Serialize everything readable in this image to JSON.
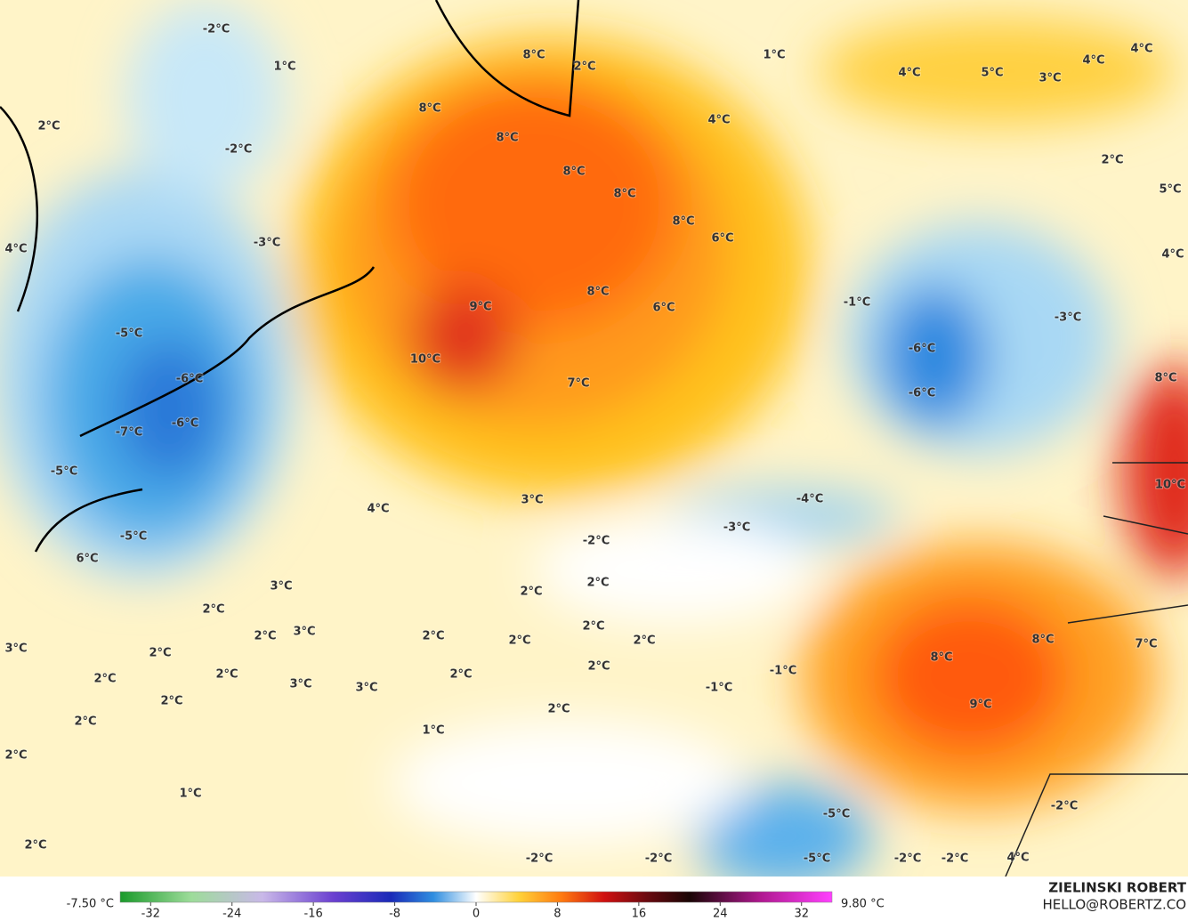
{
  "map": {
    "labels": [
      "-2°C",
      "1°C",
      "8°C",
      "2°C",
      "1°C",
      "4°C",
      "5°C",
      "3°C",
      "4°C",
      "4°C",
      "2°C",
      "8°C",
      "8°C",
      "4°C",
      "2°C",
      "-2°C",
      "8°C",
      "8°C",
      "8°C",
      "6°C",
      "5°C",
      "-3°C",
      "4°C",
      "4°C",
      "-5°C",
      "9°C",
      "8°C",
      "6°C",
      "-1°C",
      "-3°C",
      "10°C",
      "-6°C",
      "-6°C",
      "7°C",
      "-6°C",
      "8°C",
      "-6°C",
      "-7°C",
      "-5°C",
      "10°C",
      "-4°C",
      "3°C",
      "4°C",
      "-3°C",
      "-5°C",
      "-2°C",
      "6°C",
      "3°C",
      "2°C",
      "2°C",
      "2°C",
      "2°C",
      "2°C",
      "3°C",
      "2°C",
      "2°C",
      "2°C",
      "8°C",
      "7°C",
      "3°C",
      "2°C",
      "8°C",
      "2°C",
      "-1°C",
      "2°C",
      "2°C",
      "2°C",
      "3°C",
      "3°C",
      "-1°C",
      "2°C",
      "9°C",
      "2°C",
      "2°C",
      "1°C",
      "2°C",
      "1°C",
      "-5°C",
      "-2°C",
      "2°C",
      "-2°C",
      "-2°C",
      "-5°C",
      "-2°C",
      "-2°C",
      "4°C"
    ]
  },
  "colorbar": {
    "min_label": "-7.50 °C",
    "max_label": "9.80 °C",
    "lim": [
      -35,
      35
    ],
    "ticks": [
      -32,
      -24,
      -16,
      -8,
      0,
      8,
      16,
      24,
      32
    ]
  },
  "credit": {
    "name": "ZIELINSKI ROBERT",
    "email": "HELLO@ROBERTZ.CO"
  }
}
